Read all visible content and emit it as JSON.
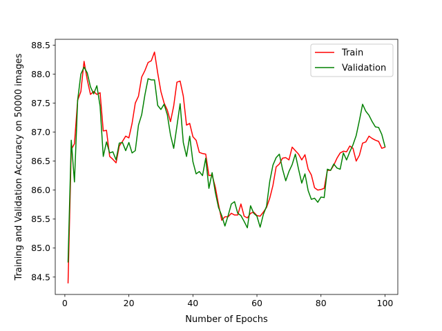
{
  "chart_data": {
    "type": "line",
    "title": "",
    "xlabel": "Number of Epochs",
    "ylabel": "Training and Validation Accuracy on 50000 images",
    "xlim": [
      -3,
      104
    ],
    "ylim": [
      84.2,
      88.6
    ],
    "xticks": [
      0,
      20,
      40,
      60,
      80,
      100
    ],
    "yticks": [
      84.5,
      85.0,
      85.5,
      86.0,
      86.5,
      87.0,
      87.5,
      88.0,
      88.5
    ],
    "grid": false,
    "legend_position": "upper right",
    "x": [
      1,
      2,
      3,
      4,
      5,
      6,
      7,
      8,
      9,
      10,
      11,
      12,
      13,
      14,
      15,
      16,
      17,
      18,
      19,
      20,
      21,
      22,
      23,
      24,
      25,
      26,
      27,
      28,
      29,
      30,
      31,
      32,
      33,
      34,
      35,
      36,
      37,
      38,
      39,
      40,
      41,
      42,
      43,
      44,
      45,
      46,
      47,
      48,
      49,
      50,
      51,
      52,
      53,
      54,
      55,
      56,
      57,
      58,
      59,
      60,
      61,
      62,
      63,
      64,
      65,
      66,
      67,
      68,
      69,
      70,
      71,
      72,
      73,
      74,
      75,
      76,
      77,
      78,
      79,
      80,
      81,
      82,
      83,
      84,
      85,
      86,
      87,
      88,
      89,
      90,
      91,
      92,
      93,
      94,
      95,
      96,
      97,
      98,
      99,
      100
    ],
    "series": [
      {
        "name": "Train",
        "color": "#ff0000",
        "values": [
          84.4,
          86.7,
          86.8,
          87.55,
          87.7,
          88.22,
          87.9,
          87.65,
          87.7,
          87.65,
          87.68,
          87.02,
          87.03,
          86.58,
          86.53,
          86.47,
          86.76,
          86.84,
          86.93,
          86.9,
          87.15,
          87.5,
          87.62,
          87.95,
          88.06,
          88.2,
          88.23,
          88.38,
          88.02,
          87.7,
          87.5,
          87.38,
          87.18,
          87.45,
          87.86,
          87.88,
          87.62,
          87.12,
          87.15,
          86.92,
          86.86,
          86.65,
          86.63,
          86.62,
          86.25,
          86.26,
          86.05,
          85.75,
          85.48,
          85.54,
          85.54,
          85.6,
          85.57,
          85.57,
          85.76,
          85.55,
          85.52,
          85.6,
          85.62,
          85.56,
          85.55,
          85.62,
          85.7,
          85.86,
          86.08,
          86.4,
          86.45,
          86.55,
          86.56,
          86.52,
          86.74,
          86.68,
          86.62,
          86.52,
          86.61,
          86.36,
          86.26,
          86.04,
          86.0,
          86.01,
          86.03,
          86.34,
          86.34,
          86.43,
          86.55,
          86.64,
          86.67,
          86.66,
          86.76,
          86.72,
          86.5,
          86.6,
          86.81,
          86.83,
          86.93,
          86.89,
          86.86,
          86.84,
          86.72,
          86.74
        ]
      },
      {
        "name": "Validation",
        "color": "#008000",
        "values": [
          84.76,
          86.86,
          86.14,
          87.55,
          88.0,
          88.12,
          88.02,
          87.78,
          87.66,
          87.8,
          87.45,
          86.58,
          86.83,
          86.64,
          86.66,
          86.52,
          86.81,
          86.82,
          86.68,
          86.82,
          86.64,
          86.68,
          87.12,
          87.3,
          87.64,
          87.92,
          87.9,
          87.9,
          87.46,
          87.39,
          87.48,
          87.3,
          86.95,
          86.72,
          87.1,
          87.49,
          86.82,
          86.58,
          86.93,
          86.49,
          86.28,
          86.32,
          86.25,
          86.55,
          86.03,
          86.3,
          85.96,
          85.7,
          85.56,
          85.38,
          85.56,
          85.76,
          85.8,
          85.6,
          85.56,
          85.46,
          85.35,
          85.73,
          85.6,
          85.55,
          85.36,
          85.58,
          85.72,
          86.15,
          86.43,
          86.56,
          86.62,
          86.36,
          86.16,
          86.32,
          86.44,
          86.62,
          86.36,
          86.12,
          86.28,
          85.99,
          85.84,
          85.86,
          85.79,
          85.88,
          85.87,
          86.36,
          86.34,
          86.45,
          86.38,
          86.36,
          86.64,
          86.52,
          86.66,
          86.78,
          86.94,
          87.2,
          87.48,
          87.36,
          87.29,
          87.18,
          87.09,
          87.08,
          86.96,
          86.75
        ]
      }
    ]
  }
}
